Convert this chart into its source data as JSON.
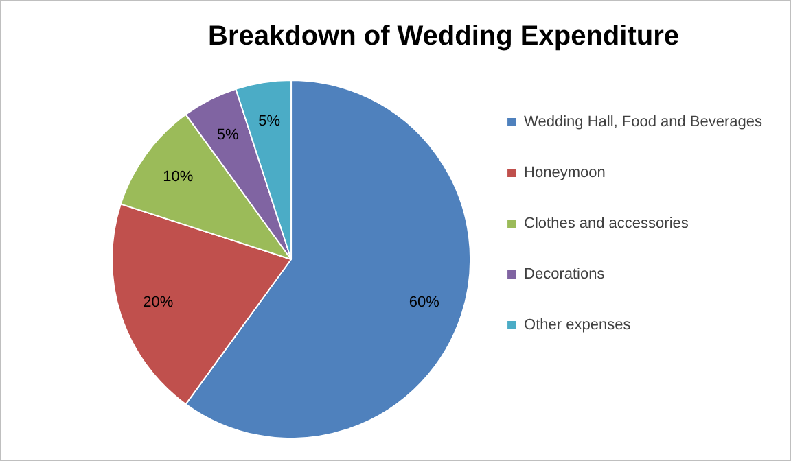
{
  "chart_data": {
    "type": "pie",
    "title": "Breakdown of Wedding Expenditure",
    "categories": [
      "Wedding Hall, Food and Beverages",
      "Honeymoon",
      "Clothes and accessories",
      "Decorations",
      "Other expenses"
    ],
    "values": [
      60,
      20,
      10,
      5,
      5
    ],
    "value_labels": [
      "60%",
      "20%",
      "10%",
      "5%",
      "5%"
    ],
    "colors": [
      "#4f81bd",
      "#c0504d",
      "#9bbb59",
      "#8064a2",
      "#4bacc6"
    ],
    "legend": "right"
  }
}
